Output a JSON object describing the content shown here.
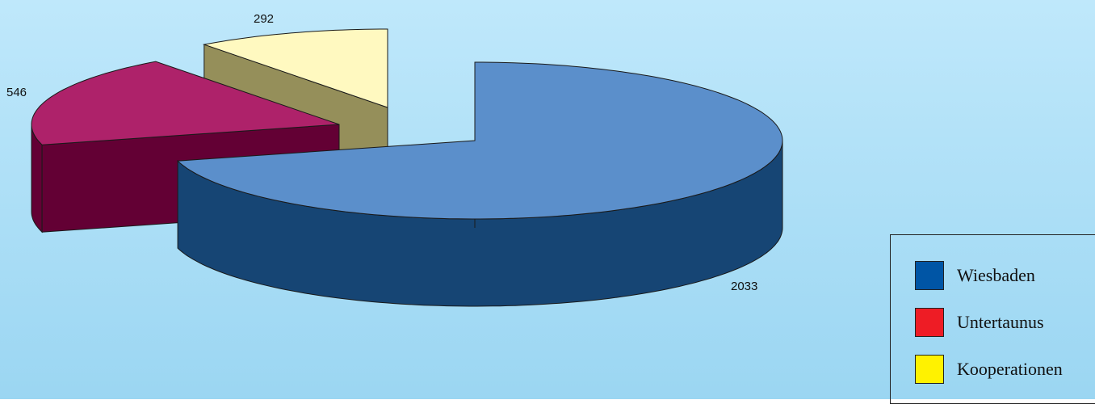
{
  "chart_data": {
    "type": "pie",
    "categories": [
      "Wiesbaden",
      "Untertaunus",
      "Kooperationen"
    ],
    "values": [
      2033,
      546,
      292
    ],
    "data_labels": [
      "2033",
      "546",
      "292"
    ],
    "colors": [
      "#0055A5",
      "#EE1C25",
      "#FFF200"
    ],
    "title": "",
    "legend_placement": "bottom-right",
    "style": "3d-exploded"
  },
  "legend": {
    "items": [
      {
        "label": "Wiesbaden",
        "color": "#0055A5"
      },
      {
        "label": "Untertaunus",
        "color": "#EE1C25"
      },
      {
        "label": "Kooperationen",
        "color": "#FFF200"
      }
    ]
  }
}
